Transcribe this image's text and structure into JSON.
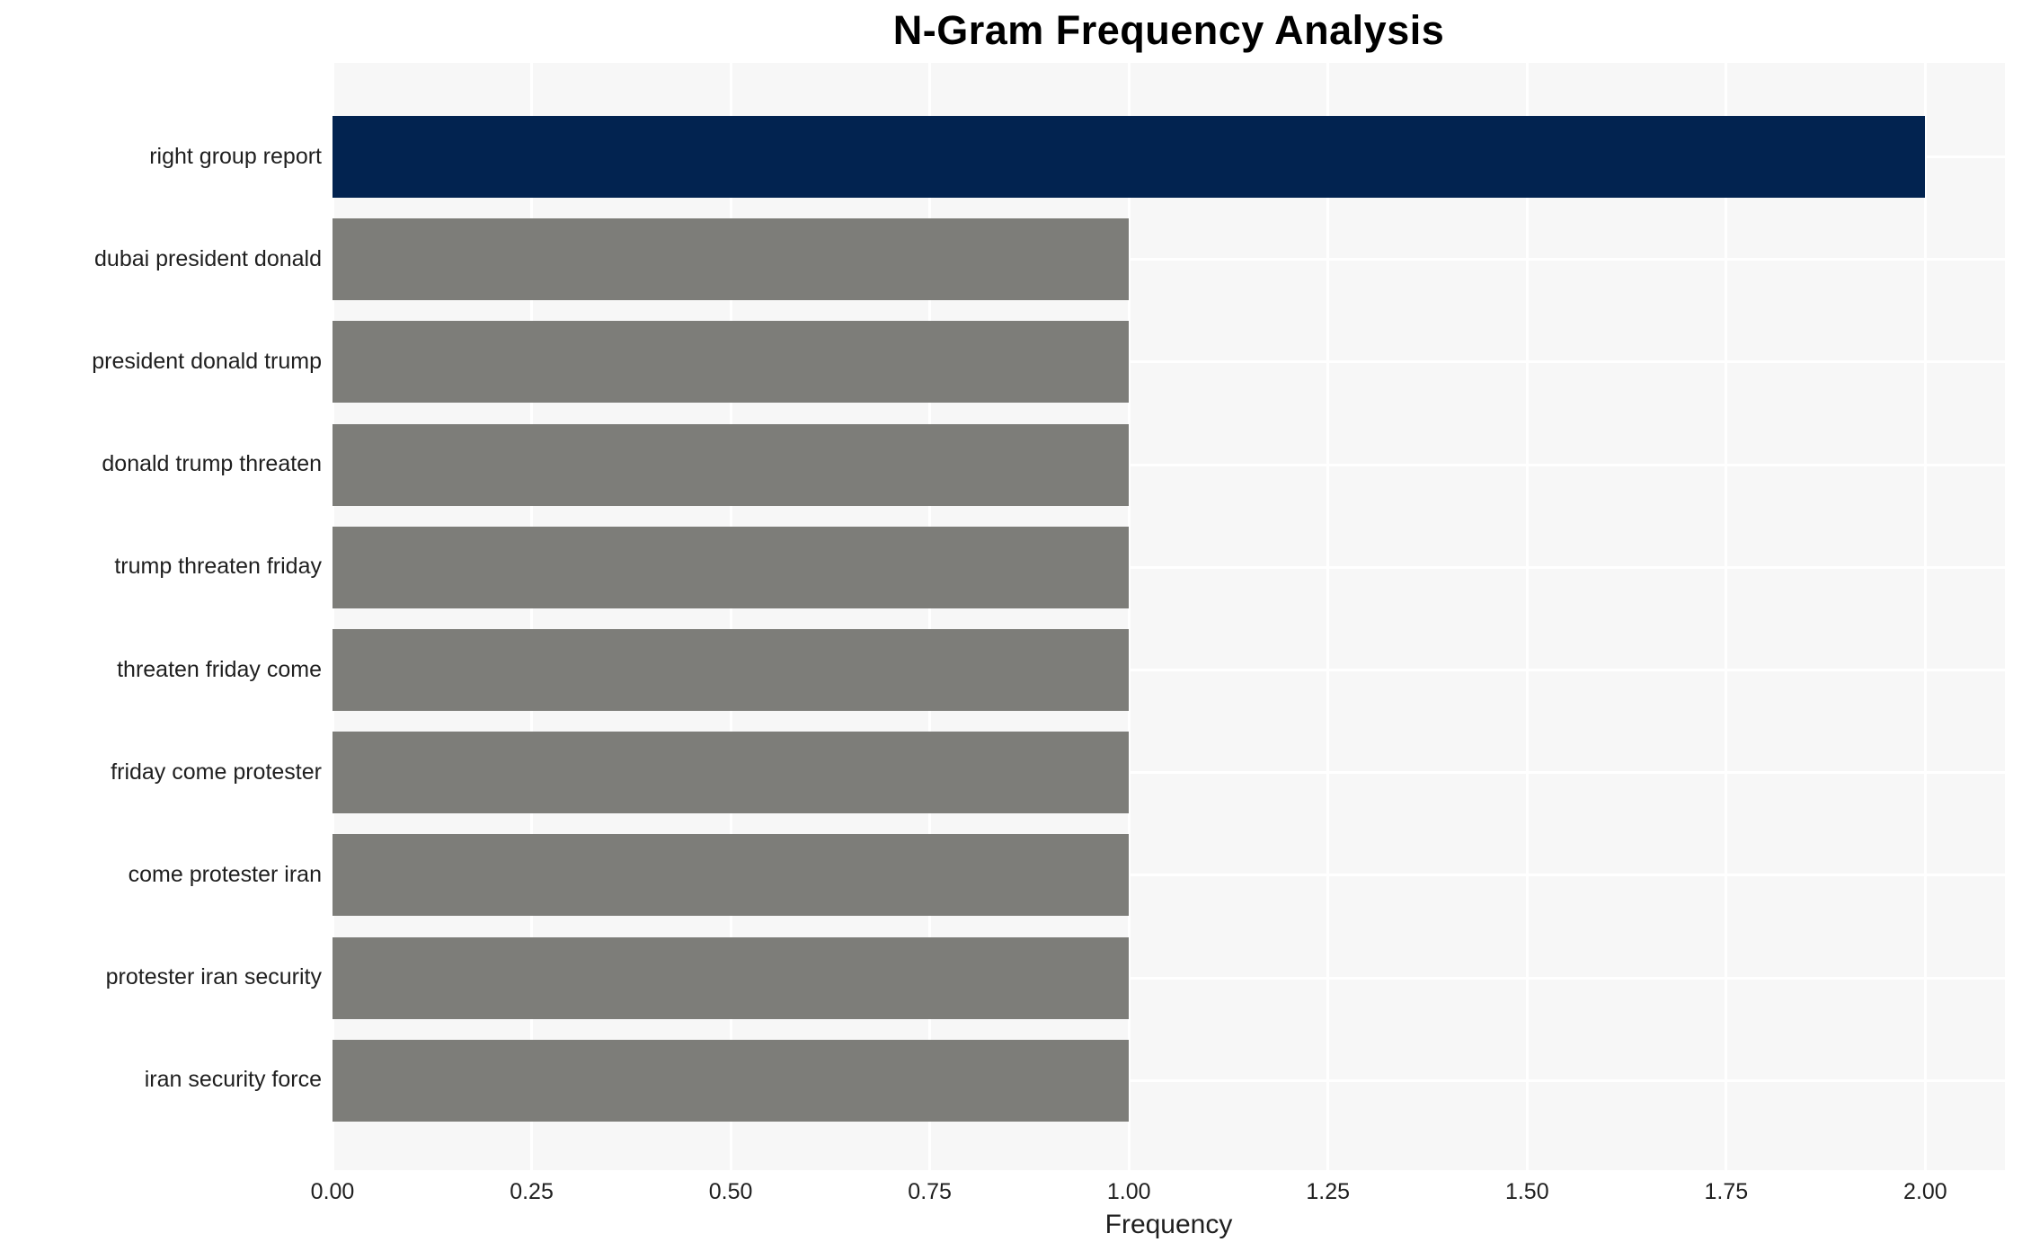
{
  "chart_data": {
    "type": "bar",
    "orientation": "horizontal",
    "title": "N-Gram Frequency Analysis",
    "xlabel": "Frequency",
    "ylabel": "",
    "categories": [
      "right group report",
      "dubai president donald",
      "president donald trump",
      "donald trump threaten",
      "trump threaten friday",
      "threaten friday come",
      "friday come protester",
      "come protester iran",
      "protester iran security",
      "iran security force"
    ],
    "values": [
      2,
      1,
      1,
      1,
      1,
      1,
      1,
      1,
      1,
      1
    ],
    "bar_colors": [
      "#022350",
      "#7d7d79",
      "#7d7d79",
      "#7d7d79",
      "#7d7d79",
      "#7d7d79",
      "#7d7d79",
      "#7d7d79",
      "#7d7d79",
      "#7d7d79"
    ],
    "xlim": [
      0,
      2.1
    ],
    "xticks": [
      {
        "value": 0.0,
        "label": "0.00"
      },
      {
        "value": 0.25,
        "label": "0.25"
      },
      {
        "value": 0.5,
        "label": "0.50"
      },
      {
        "value": 0.75,
        "label": "0.75"
      },
      {
        "value": 1.0,
        "label": "1.00"
      },
      {
        "value": 1.25,
        "label": "1.25"
      },
      {
        "value": 1.5,
        "label": "1.50"
      },
      {
        "value": 1.75,
        "label": "1.75"
      },
      {
        "value": 2.0,
        "label": "2.00"
      }
    ],
    "grid": "on",
    "legend": "none",
    "plot_background": "#f7f7f7",
    "grid_color": "#ffffff",
    "highlight_color": "#022350",
    "default_bar_color": "#7d7d79",
    "text_color": "#1f1f1f"
  }
}
